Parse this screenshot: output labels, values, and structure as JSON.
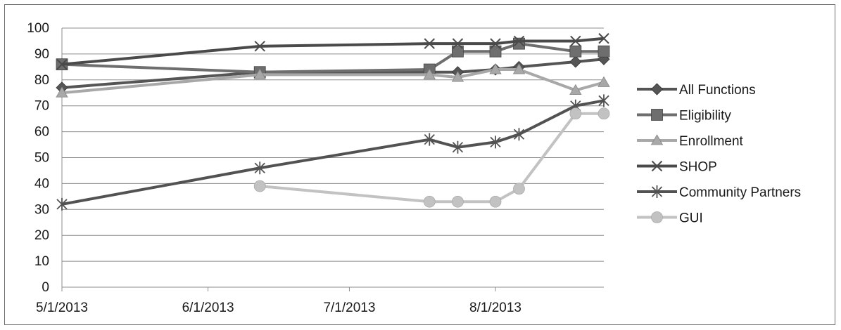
{
  "chart_data": {
    "type": "line",
    "title": "",
    "xlabel": "",
    "ylabel": "",
    "ylim": [
      0,
      100
    ],
    "yticks": [
      0,
      10,
      20,
      30,
      40,
      50,
      60,
      70,
      80,
      90,
      100
    ],
    "xlim": [
      "2013-05-01",
      "2013-08-24"
    ],
    "xtick_labels": [
      "5/1/2013",
      "6/1/2013",
      "7/1/2013",
      "8/1/2013"
    ],
    "xtick_dates": [
      "2013-05-01",
      "2013-06-01",
      "2013-07-01",
      "2013-08-01"
    ],
    "grid": true,
    "legend_position": "right",
    "series": [
      {
        "name": "All Functions",
        "marker": "diamond",
        "color": "#555555",
        "points": [
          [
            "2013-05-01",
            77
          ],
          [
            "2013-06-12",
            83
          ],
          [
            "2013-07-18",
            83
          ],
          [
            "2013-07-24",
            83
          ],
          [
            "2013-08-01",
            84
          ],
          [
            "2013-08-06",
            85
          ],
          [
            "2013-08-18",
            87
          ],
          [
            "2013-08-24",
            88
          ]
        ]
      },
      {
        "name": "Eligibility",
        "marker": "square",
        "color": "#6e6e6e",
        "points": [
          [
            "2013-05-01",
            86
          ],
          [
            "2013-06-12",
            83
          ],
          [
            "2013-07-18",
            84
          ],
          [
            "2013-07-24",
            91
          ],
          [
            "2013-08-01",
            91
          ],
          [
            "2013-08-06",
            94
          ],
          [
            "2013-08-18",
            91
          ],
          [
            "2013-08-24",
            91
          ]
        ]
      },
      {
        "name": "Enrollment",
        "marker": "triangle",
        "color": "#a8a8a8",
        "points": [
          [
            "2013-05-01",
            75
          ],
          [
            "2013-06-12",
            82
          ],
          [
            "2013-07-18",
            82
          ],
          [
            "2013-07-24",
            81
          ],
          [
            "2013-08-01",
            84
          ],
          [
            "2013-08-06",
            84
          ],
          [
            "2013-08-18",
            76
          ],
          [
            "2013-08-24",
            79
          ]
        ]
      },
      {
        "name": "SHOP",
        "marker": "x",
        "color": "#4a4a4a",
        "points": [
          [
            "2013-05-01",
            86
          ],
          [
            "2013-06-12",
            93
          ],
          [
            "2013-07-18",
            94
          ],
          [
            "2013-07-24",
            94
          ],
          [
            "2013-08-01",
            94
          ],
          [
            "2013-08-06",
            95
          ],
          [
            "2013-08-18",
            95
          ],
          [
            "2013-08-24",
            96
          ]
        ]
      },
      {
        "name": "Community Partners",
        "marker": "star",
        "color": "#525252",
        "points": [
          [
            "2013-05-01",
            32
          ],
          [
            "2013-06-12",
            46
          ],
          [
            "2013-07-18",
            57
          ],
          [
            "2013-07-24",
            54
          ],
          [
            "2013-08-01",
            56
          ],
          [
            "2013-08-06",
            59
          ],
          [
            "2013-08-18",
            70
          ],
          [
            "2013-08-24",
            72
          ]
        ]
      },
      {
        "name": "GUI",
        "marker": "circle",
        "color": "#c2c2c2",
        "points": [
          [
            "2013-06-12",
            39
          ],
          [
            "2013-07-18",
            33
          ],
          [
            "2013-07-24",
            33
          ],
          [
            "2013-08-01",
            33
          ],
          [
            "2013-08-06",
            38
          ],
          [
            "2013-08-18",
            67
          ],
          [
            "2013-08-24",
            67
          ]
        ]
      }
    ]
  }
}
